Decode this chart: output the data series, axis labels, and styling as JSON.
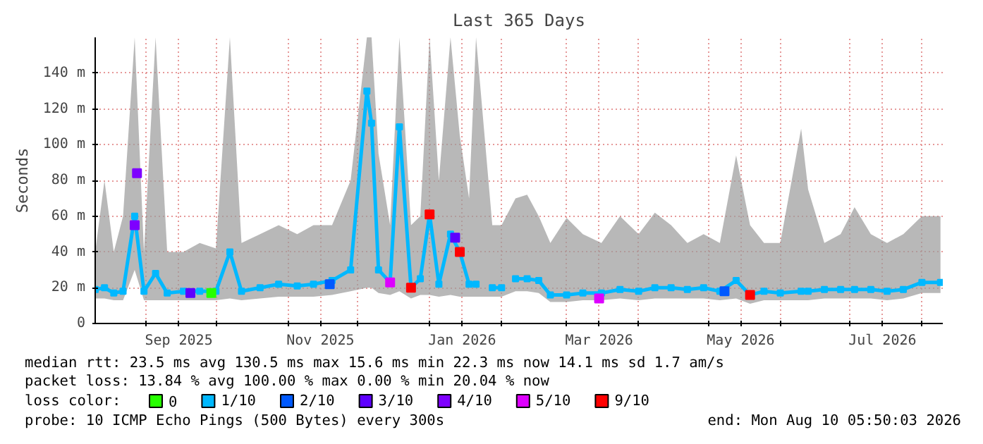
{
  "chart_data": {
    "type": "line",
    "title": "Last 365 Days",
    "ylabel": "Seconds",
    "xlim": [
      "2025-08-10",
      "2026-08-10"
    ],
    "xticks": [
      {
        "value": "2025-09-01",
        "label": null
      },
      {
        "value": "2025-09-15",
        "label": "Sep 2025"
      },
      {
        "value": "2025-10-01",
        "label": null
      },
      {
        "value": "2025-11-01",
        "label": null
      },
      {
        "value": "2025-11-15",
        "label": "Nov 2025"
      },
      {
        "value": "2025-12-01",
        "label": null
      },
      {
        "value": "2026-01-01",
        "label": null
      },
      {
        "value": "2026-01-15",
        "label": "Jan 2026"
      },
      {
        "value": "2026-02-01",
        "label": null
      },
      {
        "value": "2026-03-01",
        "label": null
      },
      {
        "value": "2026-03-15",
        "label": "Mar 2026"
      },
      {
        "value": "2026-04-01",
        "label": null
      },
      {
        "value": "2026-05-01",
        "label": null
      },
      {
        "value": "2026-05-15",
        "label": "May 2026"
      },
      {
        "value": "2026-06-01",
        "label": null
      },
      {
        "value": "2026-07-01",
        "label": null
      },
      {
        "value": "2026-07-15",
        "label": "Jul 2026"
      },
      {
        "value": "2026-08-01",
        "label": null
      }
    ],
    "ylim": [
      0,
      160
    ],
    "yticks": [
      0,
      {
        "value": 20,
        "label": "20 m"
      },
      {
        "value": 40,
        "label": "40 m"
      },
      {
        "value": 60,
        "label": "60 m"
      },
      {
        "value": 80,
        "label": "80 m"
      },
      {
        "value": 100,
        "label": "100 m"
      },
      {
        "value": 120,
        "label": "120 m"
      },
      {
        "value": 140,
        "label": "140 m"
      }
    ],
    "grid": true,
    "legend": "bottom",
    "legend_title": "loss color:",
    "series": [
      {
        "name": "0",
        "color": "#26ff00",
        "type": "scatter",
        "x": [
          "2025-09-29"
        ],
        "values": [
          17
        ]
      },
      {
        "name": "1/10",
        "color": "#00b8ff",
        "x": [
          "2025-08-10",
          "2025-08-14",
          "2025-08-18",
          "2025-08-22",
          "2025-08-27",
          "2025-08-31",
          "2025-09-05",
          "2025-09-10",
          "2025-09-17",
          "2025-09-24",
          "2025-10-01",
          "2025-10-07",
          "2025-10-12",
          "2025-10-20",
          "2025-10-28",
          "2025-11-05",
          "2025-11-12",
          "2025-11-20",
          "2025-11-28",
          "2025-12-05",
          "2025-12-07",
          "2025-12-10",
          "2025-12-15",
          "2025-12-19",
          "2025-12-24",
          "2025-12-28",
          "2026-01-01",
          "2026-01-05",
          "2026-01-10",
          "2026-01-14",
          "2026-01-18",
          "2026-01-21",
          "2026-01-24",
          "2026-01-28",
          "2026-02-01",
          "2026-02-04",
          "2026-02-07",
          "2026-02-12",
          "2026-02-17",
          "2026-02-22",
          "2026-03-01",
          "2026-03-08",
          "2026-03-16",
          "2026-03-24",
          "2026-04-01",
          "2026-04-08",
          "2026-04-15",
          "2026-04-22",
          "2026-04-29",
          "2026-05-06",
          "2026-05-13",
          "2026-05-19",
          "2026-05-25",
          "2026-06-01",
          "2026-06-10",
          "2026-06-13",
          "2026-06-20",
          "2026-06-27",
          "2026-07-03",
          "2026-07-10",
          "2026-07-17",
          "2026-07-24",
          "2026-08-01",
          "2026-08-09"
        ],
        "values": [
          19,
          20,
          17,
          18,
          60,
          18,
          28,
          17,
          18,
          18,
          18,
          40,
          18,
          20,
          22,
          21,
          22,
          24,
          30,
          130,
          112,
          30,
          23,
          110,
          20,
          25,
          61,
          22,
          50,
          40,
          22,
          22,
          null,
          20,
          20,
          null,
          25,
          25,
          24,
          16,
          16,
          17,
          17,
          19,
          18,
          20,
          20,
          19,
          20,
          18,
          24,
          16,
          18,
          17,
          18,
          18,
          19,
          19,
          19,
          19,
          18,
          19,
          23,
          23
        ],
        "lower": [
          14,
          14,
          13,
          13,
          30,
          13,
          13,
          13,
          13,
          13,
          13,
          14,
          13,
          14,
          15,
          15,
          15,
          16,
          18,
          20,
          20,
          17,
          16,
          18,
          14,
          16,
          16,
          15,
          16,
          15,
          15,
          15,
          null,
          15,
          15,
          null,
          18,
          18,
          17,
          12,
          12,
          13,
          13,
          14,
          13,
          14,
          14,
          14,
          14,
          13,
          14,
          11,
          13,
          13,
          13,
          13,
          14,
          14,
          14,
          14,
          13,
          14,
          17,
          17
        ],
        "upper": [
          40,
          80,
          40,
          60,
          160,
          40,
          160,
          40,
          40,
          45,
          42,
          160,
          45,
          50,
          55,
          50,
          55,
          55,
          80,
          160,
          160,
          95,
          55,
          160,
          55,
          60,
          160,
          80,
          160,
          105,
          70,
          160,
          null,
          55,
          55,
          null,
          70,
          72,
          60,
          45,
          59,
          50,
          45,
          60,
          50,
          62,
          55,
          45,
          50,
          45,
          94,
          55,
          45,
          45,
          109,
          75,
          45,
          50,
          65,
          50,
          45,
          50,
          60,
          60
        ]
      },
      {
        "name": "2/10",
        "color": "#0059ff",
        "type": "scatter",
        "x": [
          "2025-11-19",
          "2026-05-08"
        ],
        "values": [
          22,
          18
        ]
      },
      {
        "name": "3/10",
        "color": "#5e00ff",
        "type": "scatter",
        "x": [
          "2025-09-20",
          "2026-01-12"
        ],
        "values": [
          17,
          48
        ]
      },
      {
        "name": "4/10",
        "color": "#7e00ff",
        "type": "scatter",
        "x": [
          "2025-08-27",
          "2025-08-28"
        ],
        "values": [
          55,
          84
        ]
      },
      {
        "name": "5/10",
        "color": "#dd00ff",
        "type": "scatter",
        "x": [
          "2025-12-15",
          "2026-03-15"
        ],
        "values": [
          23,
          14
        ]
      },
      {
        "name": "9/10",
        "color": "#ff0000",
        "type": "scatter",
        "x": [
          "2025-12-24",
          "2026-01-01",
          "2026-01-14",
          "2026-05-19"
        ],
        "values": [
          20,
          61,
          40,
          16
        ]
      }
    ],
    "marker": "square",
    "annotations": [
      "median rtt:  23.5 ms avg  130.5 ms max  15.6 ms min  22.3 ms now  14.1 ms sd  1.7  am/s",
      "packet loss: 13.84 % avg  100.00 % max  0.00 % min  20.04 % now",
      "probe:       10 ICMP Echo Pings (500 Bytes) every 300s",
      "end: Mon Aug 10 05:50:03 2026"
    ]
  }
}
